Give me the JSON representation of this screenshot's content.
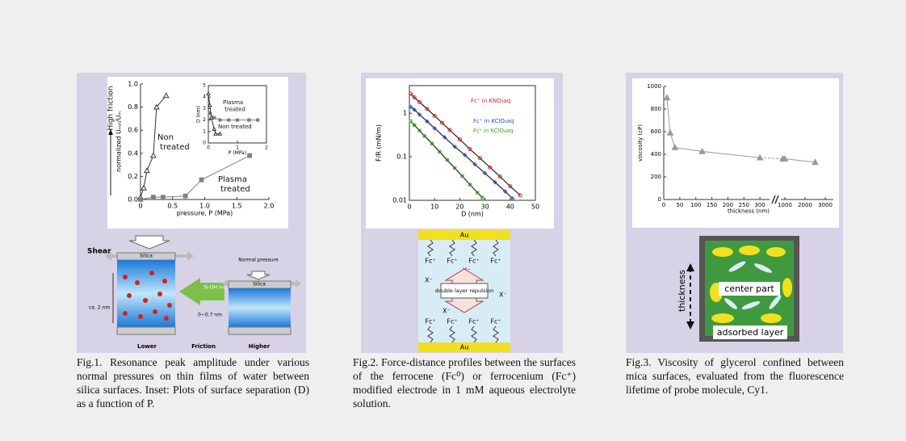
{
  "chart_data": [
    {
      "type": "line",
      "xlabel": "pressure, P (MPa)",
      "ylabel": "normalized Uₒᵤₜ/Uᵢₙ",
      "annotation": "High friction",
      "xlim": [
        0,
        2
      ],
      "xticks": [
        0,
        0.5,
        {
          "value": 1,
          "label": "1.0"
        },
        1.5,
        {
          "value": 2,
          "label": "2.0"
        }
      ],
      "ylim": [
        0,
        1
      ],
      "yticks": [
        {
          "value": 0,
          "label": "0.0"
        },
        0.2,
        0.4,
        0.6,
        0.8,
        {
          "value": 1,
          "label": "1.0"
        }
      ],
      "series": [
        {
          "name": "Non treated",
          "color": "#333333",
          "marker": "triangle",
          "x": [
            0,
            0.05,
            0.1,
            0.2,
            0.25,
            0.4
          ],
          "values": [
            0.02,
            0.1,
            0.25,
            0.38,
            0.8,
            0.9
          ]
        },
        {
          "name": "Plasma treated",
          "color": "#808080",
          "marker": "square",
          "x": [
            0,
            0.2,
            0.35,
            0.7,
            0.95,
            1.7
          ],
          "values": [
            0,
            0.02,
            0.02,
            0.03,
            0.17,
            0.38
          ]
        }
      ]
    },
    {
      "type": "line",
      "xlabel": "P (MPa)",
      "ylabel": "D (nm)",
      "xlim": [
        0,
        2
      ],
      "xticks": [
        0,
        1,
        2
      ],
      "ylim": [
        0,
        5
      ],
      "yticks": [
        0,
        1,
        2,
        3,
        4,
        5
      ],
      "series": [
        {
          "name": "Plasma treated",
          "color": "#808080",
          "marker": "square",
          "x": [
            0.05,
            0.2,
            0.4,
            0.7,
            1.0,
            1.4,
            1.7
          ],
          "values": [
            2.6,
            2.2,
            2.0,
            2.0,
            2.0,
            2.0,
            2.0
          ]
        },
        {
          "name": "Non treated",
          "color": "#333333",
          "marker": "triangle",
          "x": [
            0,
            0.05,
            0.1,
            0.2,
            0.25,
            0.4
          ],
          "values": [
            4.3,
            3.3,
            2.2,
            1.2,
            0.8,
            0.8
          ]
        }
      ]
    },
    {
      "type": "scatter",
      "xlabel": "D (nm)",
      "ylabel": "F/R (mN/m)",
      "ylog": true,
      "xlim": [
        0,
        50
      ],
      "xticks": [
        0,
        10,
        20,
        30,
        40,
        50
      ],
      "ylim": [
        0.01,
        4.3
      ],
      "yticks": [
        0.01,
        0.1,
        1
      ],
      "series": [
        {
          "name": "Fc⁺ in KNO₃aq",
          "color": "#e02020",
          "marker": "circle",
          "x": [
            0.5,
            2,
            4,
            7,
            10,
            13,
            16,
            20,
            24,
            28,
            32,
            36,
            40,
            44
          ],
          "values": [
            2.8,
            2.3,
            1.8,
            1.26,
            0.87,
            0.6,
            0.41,
            0.25,
            0.15,
            0.093,
            0.057,
            0.035,
            0.021,
            0.013
          ]
        },
        {
          "name": "Fc⁺ in KClO₄aq",
          "color": "#2050e0",
          "marker": "diamond",
          "x": [
            0.5,
            2,
            4,
            7,
            10,
            14,
            18,
            22,
            26,
            30,
            34,
            38,
            41
          ],
          "values": [
            1.4,
            1.2,
            0.93,
            0.65,
            0.45,
            0.28,
            0.17,
            0.11,
            0.067,
            0.042,
            0.026,
            0.016,
            0.011
          ]
        },
        {
          "name": "Fc⁰ in KClO₄aq",
          "color": "#40a020",
          "marker": "square",
          "x": [
            0.5,
            2,
            4,
            6,
            9,
            12,
            15,
            18,
            21,
            24,
            27,
            29
          ],
          "values": [
            0.65,
            0.53,
            0.4,
            0.3,
            0.2,
            0.13,
            0.084,
            0.055,
            0.036,
            0.023,
            0.015,
            0.0115
          ]
        }
      ]
    },
    {
      "type": "line",
      "xlabel": "thickness (nm)",
      "ylabel": "viscosity (cP)",
      "xsegments": [
        [
          0,
          330
        ],
        [
          800,
          3400
        ]
      ],
      "xticks": [
        0,
        50,
        100,
        150,
        200,
        250,
        300,
        1000,
        2000,
        3000
      ],
      "ylim": [
        0,
        1000
      ],
      "yticks": [
        0,
        200,
        400,
        600,
        800,
        1000
      ],
      "series": [
        {
          "color": "#999999",
          "marker": "triangle",
          "x": [
            10,
            20,
            35,
            120,
            300,
            900,
            1000,
            2500
          ],
          "values": [
            900,
            590,
            460,
            425,
            370,
            360,
            360,
            330
          ]
        }
      ]
    }
  ],
  "figures": [
    {
      "caption": "Fig.1. Resonance peak amplitude under various normal pressures on thin films of water between silica surfaces. Inset: Plots of surface separation (D) as a function of P.",
      "diagram": {
        "shear": "Shear",
        "silica": "Silica",
        "pressure": "Normal pressure",
        "change": "Si-OH increases",
        "gap_left": "ca. 2 nm",
        "gap_right": "0~0.7 nm",
        "left": "Lower",
        "middle": "Friction",
        "right": "Higher"
      }
    },
    {
      "caption": "Fig.2. Force-distance profiles between the surfaces of the ferrocene (Fc⁰) or ferrocenium (Fc⁺) modified electrode in 1 mM aqueous electrolyte solution.",
      "diagram": {
        "electrode": "Au",
        "site": "Fc⁺",
        "ion": "X⁻",
        "center": "double layer repulsion"
      }
    },
    {
      "caption": "Fig.3. Viscosity of glycerol confined between mica surfaces, evaluated from the fluorescence lifetime of probe molecule, Cy1.",
      "diagram": {
        "center": "center part",
        "edge": "adsorbed layer",
        "axis": "thickness"
      }
    }
  ]
}
